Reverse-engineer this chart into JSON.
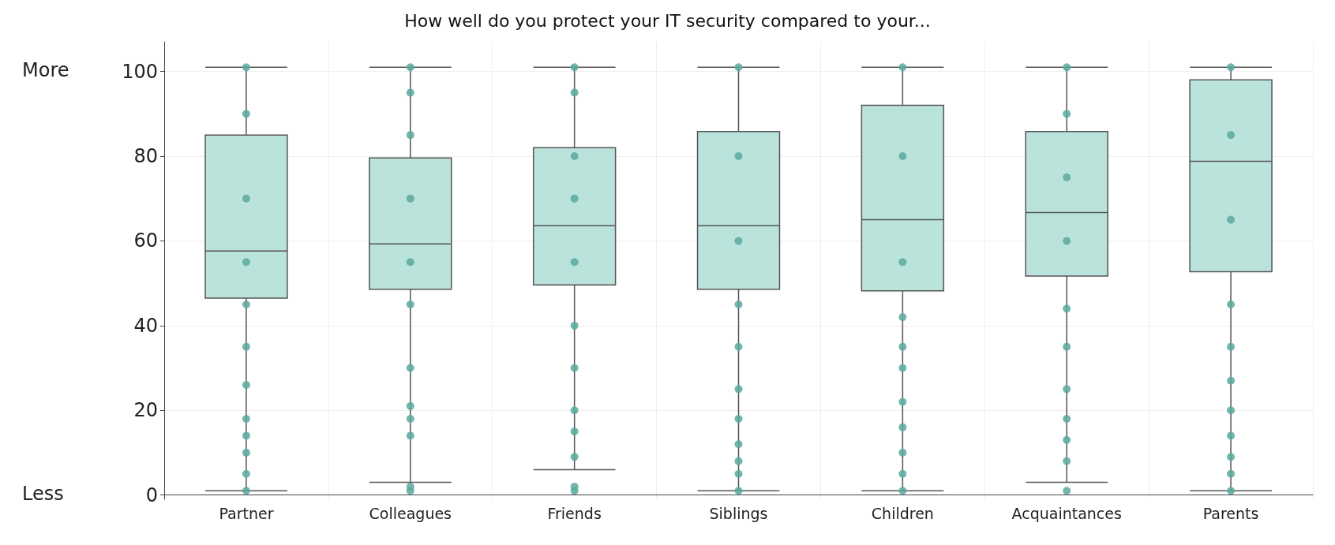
{
  "chart_data": {
    "type": "box",
    "title": "How well do you protect your IT security compared to your...",
    "categories": [
      "Partner",
      "Colleagues",
      "Friends",
      "Siblings",
      "Children",
      "Acquaintances",
      "Parents"
    ],
    "ylim": [
      -1,
      107
    ],
    "yticks": [
      0,
      20,
      40,
      60,
      80,
      100
    ],
    "grid": true,
    "marker": "circle",
    "annotations": [
      "More",
      "Less"
    ],
    "series": [
      {
        "color": "#bae3dc",
        "boxes": [
          {
            "low": 1,
            "q1": 46.5,
            "median": 57.6,
            "q3": 85,
            "high": 101
          },
          {
            "low": 3,
            "q1": 48.6,
            "median": 59.3,
            "q3": 79.6,
            "high": 101,
            "outliers": [
              1,
              2
            ]
          },
          {
            "low": 6,
            "q1": 49.6,
            "median": 63.6,
            "q3": 82,
            "high": 101,
            "outliers": [
              1,
              2
            ]
          },
          {
            "low": 1,
            "q1": 48.6,
            "median": 63.6,
            "q3": 85.8,
            "high": 101
          },
          {
            "low": 1,
            "q1": 48.2,
            "median": 65,
            "q3": 92,
            "high": 101
          },
          {
            "low": 3,
            "q1": 51.7,
            "median": 66.7,
            "q3": 85.8,
            "high": 101,
            "outliers": [
              1
            ]
          },
          {
            "low": 1,
            "q1": 52.7,
            "median": 78.8,
            "q3": 98,
            "high": 101
          }
        ]
      },
      {
        "type": "scatter",
        "color": "#5aa9a0",
        "x": [
          "Partner",
          "Partner",
          "Partner",
          "Partner",
          "Partner",
          "Partner",
          "Partner",
          "Partner",
          "Partner",
          "Partner",
          "Partner",
          "Partner",
          "Colleagues",
          "Colleagues",
          "Colleagues",
          "Colleagues",
          "Colleagues",
          "Colleagues",
          "Colleagues",
          "Colleagues",
          "Colleagues",
          "Colleagues",
          "Friends",
          "Friends",
          "Friends",
          "Friends",
          "Friends",
          "Friends",
          "Friends",
          "Friends",
          "Friends",
          "Friends",
          "Siblings",
          "Siblings",
          "Siblings",
          "Siblings",
          "Siblings",
          "Siblings",
          "Siblings",
          "Siblings",
          "Siblings",
          "Siblings",
          "Siblings",
          "Children",
          "Children",
          "Children",
          "Children",
          "Children",
          "Children",
          "Children",
          "Children",
          "Children",
          "Children",
          "Children",
          "Acquaintances",
          "Acquaintances",
          "Acquaintances",
          "Acquaintances",
          "Acquaintances",
          "Acquaintances",
          "Acquaintances",
          "Acquaintances",
          "Acquaintances",
          "Acquaintances",
          "Parents",
          "Parents",
          "Parents",
          "Parents",
          "Parents",
          "Parents",
          "Parents",
          "Parents",
          "Parents",
          "Parents",
          "Parents"
        ],
        "values": [
          1,
          5,
          10,
          14,
          18,
          26,
          35,
          45,
          55,
          70,
          90,
          101,
          14,
          18,
          21,
          30,
          45,
          55,
          70,
          85,
          95,
          101,
          9,
          15,
          20,
          30,
          40,
          55,
          70,
          80,
          95,
          101,
          1,
          5,
          8,
          12,
          18,
          25,
          35,
          45,
          60,
          80,
          101,
          1,
          5,
          10,
          16,
          22,
          30,
          35,
          42,
          55,
          80,
          101,
          8,
          13,
          18,
          25,
          35,
          44,
          60,
          75,
          90,
          101,
          1,
          5,
          9,
          14,
          20,
          27,
          35,
          45,
          65,
          85,
          101
        ]
      }
    ]
  }
}
